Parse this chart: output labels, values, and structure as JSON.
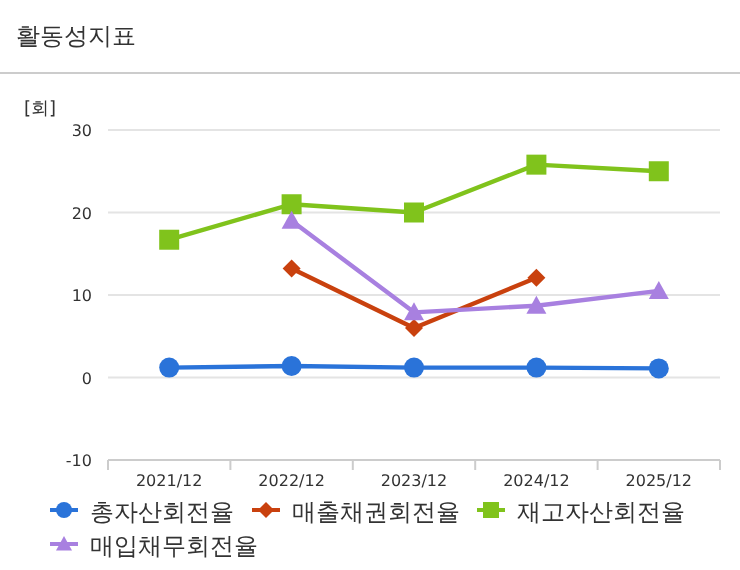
{
  "chart_data": {
    "type": "line",
    "title": "활동성지표",
    "ylabel": "[회]",
    "categories": [
      "2021/12",
      "2022/12",
      "2023/12",
      "2024/12",
      "2025/12"
    ],
    "series": [
      {
        "name": "총자산회전율",
        "color": "#2a73d9",
        "marker": "circle",
        "values": [
          1.2,
          1.4,
          1.2,
          1.2,
          1.1
        ]
      },
      {
        "name": "매출채권회전율",
        "color": "#c9410e",
        "marker": "diamond",
        "values": [
          null,
          13.2,
          6,
          12.1,
          null
        ]
      },
      {
        "name": "재고자산회전율",
        "color": "#80c31c",
        "marker": "square",
        "values": [
          16.7,
          21,
          20,
          25.8,
          25
        ]
      },
      {
        "name": "매입채무회전율",
        "color": "#a880e0",
        "marker": "triangle",
        "values": [
          null,
          19,
          7.9,
          8.7,
          10.5
        ]
      }
    ],
    "ylim": [
      -10,
      30
    ],
    "yticks": [
      -10,
      0,
      10,
      20,
      30
    ],
    "grid": "y",
    "legend": "bottom"
  }
}
